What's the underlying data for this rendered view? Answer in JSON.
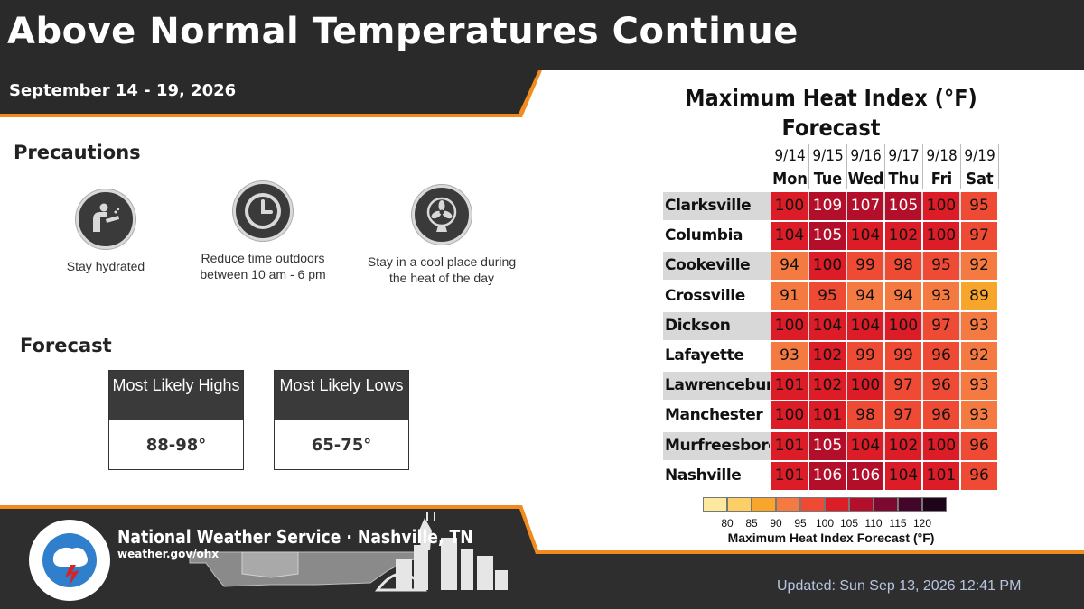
{
  "header": {
    "title": "Above Normal Temperatures Continue",
    "date_range": "September 14 - 19, 2026"
  },
  "precautions": {
    "heading": "Precautions",
    "items": [
      {
        "icon": "drinking-water-icon",
        "label": "Stay hydrated"
      },
      {
        "icon": "clock-icon",
        "label": "Reduce time outdoors between 10 am - 6 pm"
      },
      {
        "icon": "fan-icon",
        "label": "Stay in a cool place during the heat of the day"
      }
    ]
  },
  "forecast": {
    "heading": "Forecast",
    "boxes": [
      {
        "label": "Most Likely Highs",
        "value": "88-98°"
      },
      {
        "label": "Most Likely Lows",
        "value": "65-75°"
      }
    ]
  },
  "heat_table": {
    "title_line1": "Maximum Heat Index (°F)",
    "title_line2": "Forecast",
    "days": [
      {
        "date": "9/14",
        "name": "Mon"
      },
      {
        "date": "9/15",
        "name": "Tue"
      },
      {
        "date": "9/16",
        "name": "Wed"
      },
      {
        "date": "9/17",
        "name": "Thu"
      },
      {
        "date": "9/18",
        "name": "Fri"
      },
      {
        "date": "9/19",
        "name": "Sat"
      }
    ],
    "rows": [
      {
        "city": "Clarksville",
        "values": [
          100,
          109,
          107,
          105,
          100,
          95
        ]
      },
      {
        "city": "Columbia",
        "values": [
          104,
          105,
          104,
          102,
          100,
          97
        ]
      },
      {
        "city": "Cookeville",
        "values": [
          94,
          100,
          99,
          98,
          95,
          92
        ]
      },
      {
        "city": "Crossville",
        "values": [
          91,
          95,
          94,
          94,
          93,
          89
        ]
      },
      {
        "city": "Dickson",
        "values": [
          100,
          104,
          104,
          100,
          97,
          93
        ]
      },
      {
        "city": "Lafayette",
        "values": [
          93,
          102,
          99,
          99,
          96,
          92
        ]
      },
      {
        "city": "Lawrenceburg",
        "values": [
          101,
          102,
          100,
          97,
          96,
          93
        ]
      },
      {
        "city": "Manchester",
        "values": [
          100,
          101,
          98,
          97,
          96,
          93
        ]
      },
      {
        "city": "Murfreesboro",
        "values": [
          101,
          105,
          104,
          102,
          100,
          96
        ]
      },
      {
        "city": "Nashville",
        "values": [
          101,
          106,
          106,
          104,
          101,
          96
        ]
      }
    ]
  },
  "legend": {
    "title": "Maximum Heat Index Forecast (°F)",
    "ticks": [
      "80",
      "85",
      "90",
      "95",
      "100",
      "105",
      "110",
      "115",
      "120"
    ],
    "colors": [
      "#fde8a0",
      "#fccf66",
      "#f8a52c",
      "#f57a42",
      "#ee4a34",
      "#dc1c26",
      "#b40f2a",
      "#7c0a30",
      "#42062a",
      "#1e0418"
    ]
  },
  "footer": {
    "office": "National Weather Service · Nashville, TN",
    "url": "weather.gov/ohx",
    "updated": "Updated: Sun Sep 13, 2026 12:41 PM",
    "logo_text": "NATIONAL WEATHER SERVICE"
  },
  "colors": {
    "dark": "#2a2a2a",
    "accent_orange": "#f28a1e",
    "footer_bg": "#2e2e2e"
  }
}
